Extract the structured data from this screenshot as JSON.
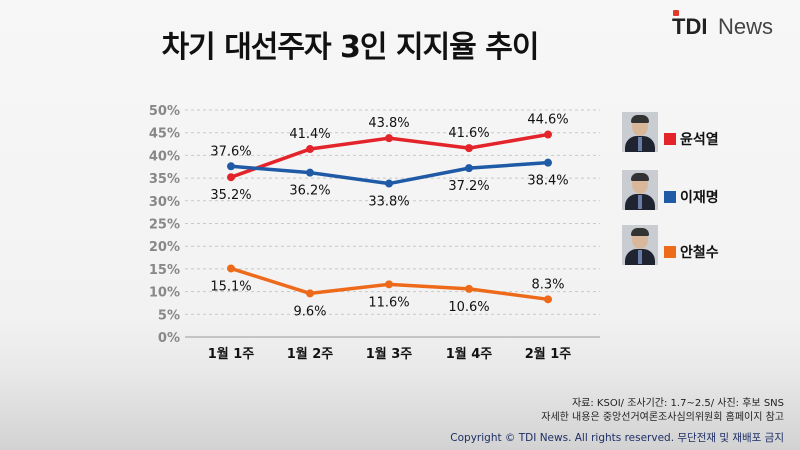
{
  "header": {
    "title": "차기 대선주자 3인 지지율 추이",
    "logo_tdi": "TDI",
    "logo_news": "News"
  },
  "colors": {
    "yoon": "#e3242b",
    "lee": "#1f5aa6",
    "ahn": "#ee6a1b",
    "grid": "#c8c8c8",
    "tick": "#888888"
  },
  "legend": [
    {
      "name": "윤석열",
      "color": "#e3242b",
      "photo_icon": "candidate-photo-icon"
    },
    {
      "name": "이재명",
      "color": "#1f5aa6",
      "photo_icon": "candidate-photo-icon"
    },
    {
      "name": "안철수",
      "color": "#ee6a1b",
      "photo_icon": "candidate-photo-icon"
    }
  ],
  "chart_data": {
    "type": "line",
    "title": "차기 대선주자 3인 지지율 추이",
    "xlabel": "",
    "ylabel": "",
    "categories": [
      "1월 1주",
      "1월 2주",
      "1월 3주",
      "1월 4주",
      "2월 1주"
    ],
    "y_ticks": [
      "0%",
      "5%",
      "10%",
      "15%",
      "20%",
      "25%",
      "30%",
      "35%",
      "40%",
      "45%",
      "50%"
    ],
    "ylim": [
      0,
      50
    ],
    "grid": true,
    "legend_position": "right",
    "series": [
      {
        "name": "윤석열",
        "color": "#e3242b",
        "values": [
          35.2,
          41.4,
          43.8,
          41.6,
          44.6
        ],
        "labels": [
          "35.2%",
          "41.4%",
          "43.8%",
          "41.6%",
          "44.6%"
        ]
      },
      {
        "name": "이재명",
        "color": "#1f5aa6",
        "values": [
          37.6,
          36.2,
          33.8,
          37.2,
          38.4
        ],
        "labels": [
          "37.6%",
          "36.2%",
          "33.8%",
          "37.2%",
          "38.4%"
        ]
      },
      {
        "name": "안철수",
        "color": "#ee6a1b",
        "values": [
          15.1,
          9.6,
          11.6,
          10.6,
          8.3
        ],
        "labels": [
          "15.1%",
          "9.6%",
          "11.6%",
          "10.6%",
          "8.3%"
        ]
      }
    ]
  },
  "footer": {
    "source": "자료: KSOI/ 조사기간: 1.7~2.5/ 사진: 후보 SNS",
    "note": "자세한 내용은 중앙선거여론조사심의위원회 홈페이지 참고",
    "copyright": "Copyright © TDI News. All rights reserved. 무단전재 및 재배포 금지"
  }
}
